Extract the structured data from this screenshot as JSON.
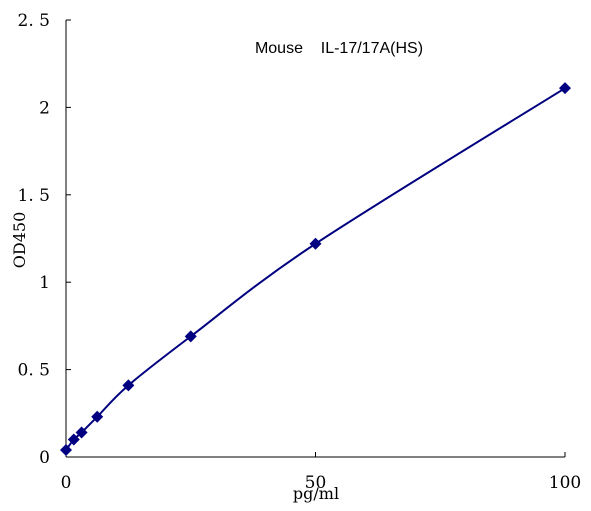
{
  "chart_data": {
    "type": "scatter",
    "title": "Mouse    IL-17/17A(HS)",
    "xlabel": "pg/ml",
    "ylabel": "OD450",
    "xlim": [
      0,
      100
    ],
    "ylim": [
      0,
      2.5
    ],
    "xticks": [
      0,
      50,
      100
    ],
    "xtick_labels": [
      "0",
      "50",
      "100"
    ],
    "yticks": [
      0,
      0.5,
      1,
      1.5,
      2,
      2.5
    ],
    "ytick_labels": [
      "0",
      "0. 5",
      "1",
      "1. 5",
      "2",
      "2. 5"
    ],
    "grid": false,
    "legend": "none",
    "series": [
      {
        "x": [
          0,
          1.5625,
          3.125,
          6.25,
          12.5,
          25,
          50,
          100
        ],
        "y": [
          0.04,
          0.1,
          0.14,
          0.23,
          0.41,
          0.69,
          1.22,
          2.11
        ],
        "marker": "diamond",
        "line": "smooth-fit"
      }
    ],
    "colors": {
      "series": "#000080",
      "axis": "#000000"
    }
  }
}
